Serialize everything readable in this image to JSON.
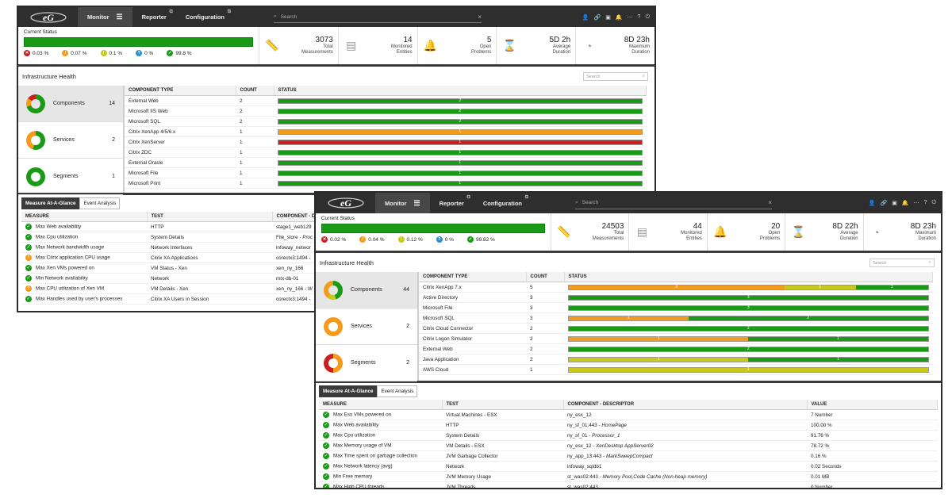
{
  "brand": {
    "logo": "eG"
  },
  "colors": {
    "ok": "#199b17",
    "major": "#f49b1b",
    "minor": "#c9c91d",
    "critical": "#cc2020",
    "info": "#2a8fd1",
    "topbar": "#2e2e2e"
  },
  "nav": {
    "monitor": "Monitor",
    "reporter": "Reporter",
    "configuration": "Configuration",
    "search_placeholder": "Search"
  },
  "w1": {
    "status": {
      "label": "Current Status",
      "critical": "0.03 %",
      "major": "0.07 %",
      "minor": "0.1 %",
      "unknown": "0 %",
      "normal": "99.8 %"
    },
    "metrics": [
      {
        "value": "3073",
        "l1": "Total",
        "l2": "Measurements",
        "icon": "ruler-icon"
      },
      {
        "value": "14",
        "l1": "Monitored",
        "l2": "Entities",
        "icon": "server-icon"
      },
      {
        "value": "5",
        "l1": "Open",
        "l2": "Problems",
        "icon": "bell-icon"
      },
      {
        "value": "5D 2h",
        "l1": "Average",
        "l2": "Duration",
        "icon": "hourglass-icon"
      },
      {
        "value": "8D 23h",
        "l1": "Maximum",
        "l2": "Duration",
        "icon": "stopwatch-icon"
      }
    ],
    "infra": {
      "title": "Infrastructure Health",
      "search": "Search",
      "cats": [
        {
          "label": "Components",
          "count": "14"
        },
        {
          "label": "Services",
          "count": "2"
        },
        {
          "label": "Segments",
          "count": "1"
        }
      ],
      "headers": [
        "COMPONENT TYPE",
        "COUNT",
        "STATUS"
      ],
      "rows": [
        {
          "type": "External Web",
          "count": "2",
          "segs": [
            {
              "c": "g",
              "v": "2",
              "w": 1
            }
          ]
        },
        {
          "type": "Microsoft IIS Web",
          "count": "2",
          "segs": [
            {
              "c": "g",
              "v": "2",
              "w": 1
            }
          ]
        },
        {
          "type": "Microsoft SQL",
          "count": "2",
          "segs": [
            {
              "c": "g",
              "v": "2",
              "w": 1
            }
          ]
        },
        {
          "type": "Citrix XenApp 4/5/6.x",
          "count": "1",
          "segs": [
            {
              "c": "o",
              "v": "1",
              "w": 1
            }
          ]
        },
        {
          "type": "Citrix XenServer",
          "count": "1",
          "segs": [
            {
              "c": "r",
              "v": "1",
              "w": 1
            }
          ]
        },
        {
          "type": "Citrix ZDC",
          "count": "1",
          "segs": [
            {
              "c": "g",
              "v": "1",
              "w": 1
            }
          ]
        },
        {
          "type": "External Oracle",
          "count": "1",
          "segs": [
            {
              "c": "g",
              "v": "1",
              "w": 1
            }
          ]
        },
        {
          "type": "Microsoft File",
          "count": "1",
          "segs": [
            {
              "c": "g",
              "v": "1",
              "w": 1
            }
          ]
        },
        {
          "type": "Microsoft Print",
          "count": "1",
          "segs": [
            {
              "c": "g",
              "v": "1",
              "w": 1
            }
          ]
        }
      ]
    },
    "tabs": [
      "Measure At-A-Glance",
      "Event Analysis"
    ],
    "mheaders": [
      "MEASURE",
      "TEST",
      "COMPONENT - D"
    ],
    "mrows": [
      {
        "s": "ok",
        "m": "Max Web availability",
        "t": "HTTP",
        "c": "stage1_web129",
        "ci": ""
      },
      {
        "s": "ok",
        "m": "Max Cpu utilization",
        "t": "System Details",
        "c": "File_store - ",
        "ci": "Proc"
      },
      {
        "s": "ok",
        "m": "Max Network bandwidth usage",
        "t": "Network Interfaces",
        "c": "infoway_networ",
        "ci": ""
      },
      {
        "s": "warn",
        "m": "Max Citrix application CPU usage",
        "t": "Citrix XA Applications",
        "c": "corectx3:1494 - ",
        "ci": ""
      },
      {
        "s": "ok",
        "m": "Max Xen VMs powered on",
        "t": "VM Status - Xen",
        "c": "xen_ny_166",
        "ci": ""
      },
      {
        "s": "ok",
        "m": "Min Network availability",
        "t": "Network",
        "c": "mtx-db-01",
        "ci": ""
      },
      {
        "s": "warn",
        "m": "Max CPU utilization of Xen VM",
        "t": "VM Details - Xen",
        "c": "xen_ny_166 - ",
        "ci": "W"
      },
      {
        "s": "ok",
        "m": "Max Handles used by user's processes",
        "t": "Citrix XA Users in Session",
        "c": "corectx3:1494 - ",
        "ci": ""
      }
    ]
  },
  "w2": {
    "status": {
      "label": "Current Status",
      "critical": "0.02 %",
      "major": "0.04 %",
      "minor": "0.12 %",
      "unknown": "0 %",
      "normal": "99.82 %"
    },
    "metrics": [
      {
        "value": "24503",
        "l1": "Total",
        "l2": "Measurements",
        "icon": "ruler-icon"
      },
      {
        "value": "44",
        "l1": "Monitored",
        "l2": "Entities",
        "icon": "server-icon"
      },
      {
        "value": "20",
        "l1": "Open",
        "l2": "Problems",
        "icon": "bell-icon"
      },
      {
        "value": "8D 22h",
        "l1": "Average",
        "l2": "Duration",
        "icon": "hourglass-icon"
      },
      {
        "value": "8D 23h",
        "l1": "Maximum",
        "l2": "Duration",
        "icon": "stopwatch-icon"
      }
    ],
    "infra": {
      "title": "Infrastructure Health",
      "search": "Search",
      "cats": [
        {
          "label": "Components",
          "count": "44"
        },
        {
          "label": "Services",
          "count": "2"
        },
        {
          "label": "Segments",
          "count": "2"
        }
      ],
      "headers": [
        "COMPONENT TYPE",
        "COUNT",
        "STATUS"
      ],
      "rows": [
        {
          "type": "Citrix XenApp 7.x",
          "count": "5",
          "segs": [
            {
              "c": "o",
              "v": "3",
              "w": 3
            },
            {
              "c": "y",
              "v": "1",
              "w": 1
            },
            {
              "c": "g",
              "v": "1",
              "w": 1
            }
          ]
        },
        {
          "type": "Active Directory",
          "count": "3",
          "segs": [
            {
              "c": "g",
              "v": "3",
              "w": 1
            }
          ]
        },
        {
          "type": "Microsoft File",
          "count": "3",
          "segs": [
            {
              "c": "g",
              "v": "3",
              "w": 1
            }
          ]
        },
        {
          "type": "Microsoft SQL",
          "count": "3",
          "segs": [
            {
              "c": "o",
              "v": "1",
              "w": 1
            },
            {
              "c": "g",
              "v": "2",
              "w": 2
            }
          ]
        },
        {
          "type": "Citrix Cloud Connector",
          "count": "2",
          "segs": [
            {
              "c": "g",
              "v": "2",
              "w": 1
            }
          ]
        },
        {
          "type": "Citrix Logon Simulator",
          "count": "2",
          "segs": [
            {
              "c": "o",
              "v": "1",
              "w": 1
            },
            {
              "c": "g",
              "v": "1",
              "w": 1
            }
          ]
        },
        {
          "type": "External Web",
          "count": "2",
          "segs": [
            {
              "c": "g",
              "v": "2",
              "w": 1
            }
          ]
        },
        {
          "type": "Java Application",
          "count": "2",
          "segs": [
            {
              "c": "y",
              "v": "1",
              "w": 1
            },
            {
              "c": "g",
              "v": "1",
              "w": 1
            }
          ]
        },
        {
          "type": "AWS Cloud",
          "count": "1",
          "segs": [
            {
              "c": "y",
              "v": "1",
              "w": 1
            }
          ]
        }
      ]
    },
    "tabs": [
      "Measure At-A-Glance",
      "Event Analysis"
    ],
    "mheaders": [
      "MEASURE",
      "TEST",
      "COMPONENT - DESCRIPTOR",
      "VALUE"
    ],
    "mrows": [
      {
        "s": "ok",
        "m": "Max Esx VMs powered on",
        "t": "Virtual Machines - ESX",
        "c": "ny_esx_12",
        "ci": "",
        "v": "7 Number"
      },
      {
        "s": "ok",
        "m": "Max Web availability",
        "t": "HTTP",
        "c": "ny_sf_01:443 - ",
        "ci": "HomePage",
        "v": "100.00 %"
      },
      {
        "s": "ok",
        "m": "Max Cpu utilization",
        "t": "System Details",
        "c": "ny_sf_01 - ",
        "ci": "Processor_1",
        "v": "91.76 %"
      },
      {
        "s": "ok",
        "m": "Max Memory usage of VM",
        "t": "VM Details - ESX",
        "c": "ny_esx_12 - ",
        "ci": "XenDesktop AppServer02",
        "v": "78.72 %"
      },
      {
        "s": "ok",
        "m": "Max Time spent on garbage collection",
        "t": "JVM Garbage Collector",
        "c": "ny_app_13:443 - ",
        "ci": "MarkSweepCompact",
        "v": "0.16 %"
      },
      {
        "s": "ok",
        "m": "Max Network latency (avg)",
        "t": "Network",
        "c": "infoway_sqldb1",
        "ci": "",
        "v": "0.02 Seconds"
      },
      {
        "s": "ok",
        "m": "Min Free memory",
        "t": "JVM Memory Usage",
        "c": "st_was02:443 - ",
        "ci": "Memory Pool,Code Cache (Non-heap memory)",
        "v": "0.01 MB"
      },
      {
        "s": "ok",
        "m": "Max High CPU threads",
        "t": "JVM Threads",
        "c": "st_was02:443",
        "ci": "",
        "v": "0 Number"
      }
    ]
  }
}
